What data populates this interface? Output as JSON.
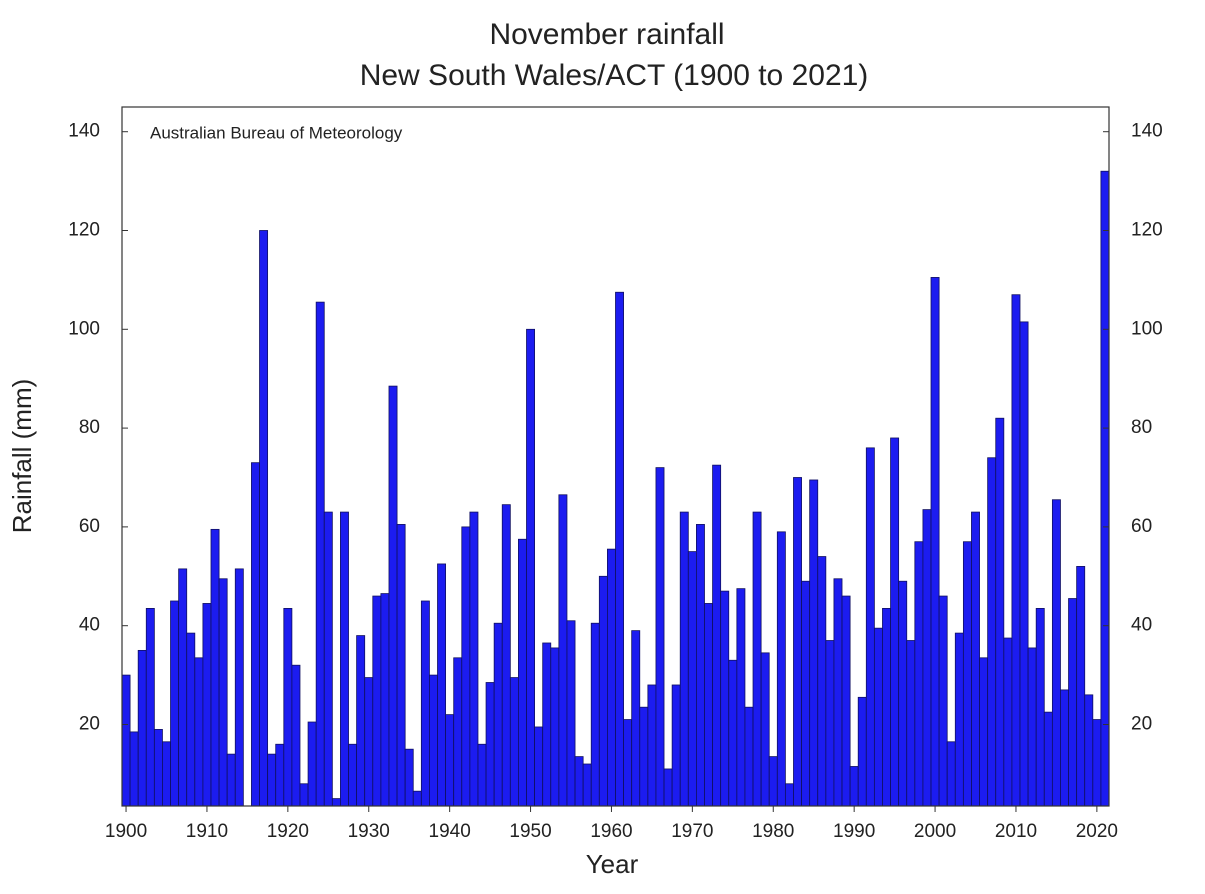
{
  "chart_data": {
    "type": "bar",
    "title": "November rainfall",
    "subtitle": "New South Wales/ACT (1900 to 2021)",
    "annotation": "Australian Bureau of Meteorology",
    "xlabel": "Year",
    "ylabel": "Rainfall (mm)",
    "color": "#1c1cf0",
    "x": [
      1900,
      1901,
      1902,
      1903,
      1904,
      1905,
      1906,
      1907,
      1908,
      1909,
      1910,
      1911,
      1912,
      1913,
      1914,
      1915,
      1916,
      1917,
      1918,
      1919,
      1920,
      1921,
      1922,
      1923,
      1924,
      1925,
      1926,
      1927,
      1928,
      1929,
      1930,
      1931,
      1932,
      1933,
      1934,
      1935,
      1936,
      1937,
      1938,
      1939,
      1940,
      1941,
      1942,
      1943,
      1944,
      1945,
      1946,
      1947,
      1948,
      1949,
      1950,
      1951,
      1952,
      1953,
      1954,
      1955,
      1956,
      1957,
      1958,
      1959,
      1960,
      1961,
      1962,
      1963,
      1964,
      1965,
      1966,
      1967,
      1968,
      1969,
      1970,
      1971,
      1972,
      1973,
      1974,
      1975,
      1976,
      1977,
      1978,
      1979,
      1980,
      1981,
      1982,
      1983,
      1984,
      1985,
      1986,
      1987,
      1988,
      1989,
      1990,
      1991,
      1992,
      1993,
      1994,
      1995,
      1996,
      1997,
      1998,
      1999,
      2000,
      2001,
      2002,
      2003,
      2004,
      2005,
      2006,
      2007,
      2008,
      2009,
      2010,
      2011,
      2012,
      2013,
      2014,
      2015,
      2016,
      2017,
      2018,
      2019,
      2020,
      2021
    ],
    "values": [
      30,
      18.5,
      35,
      43.5,
      19,
      16.5,
      45,
      51.5,
      38.5,
      33.5,
      44.5,
      59.5,
      49.5,
      14,
      51.5,
      3.5,
      73,
      120,
      14,
      16,
      43.5,
      32,
      8,
      20.5,
      105.5,
      63,
      5,
      63,
      16,
      38,
      29.5,
      46,
      46.5,
      88.5,
      60.5,
      15,
      6.5,
      45,
      30,
      52.5,
      22,
      33.5,
      60,
      63,
      16,
      28.5,
      40.5,
      64.5,
      29.5,
      57.5,
      100,
      19.5,
      36.5,
      35.5,
      66.5,
      41,
      13.5,
      12,
      40.5,
      50,
      55.5,
      107.5,
      21,
      39,
      23.5,
      28,
      72,
      11,
      28,
      63,
      55,
      60.5,
      44.5,
      72.5,
      47,
      33,
      47.5,
      23.5,
      63,
      34.5,
      13.5,
      59,
      8,
      70,
      49,
      69.5,
      54,
      37,
      49.5,
      46,
      11.5,
      25.5,
      76,
      39.5,
      43.5,
      78,
      49,
      37,
      57,
      63.5,
      110.5,
      46,
      16.5,
      38.5,
      57,
      63,
      33.5,
      74,
      82,
      37.5,
      107,
      101.5,
      35.5,
      43.5,
      22.5,
      65.5,
      27,
      45.5,
      52,
      26,
      21,
      132
    ],
    "xlim": [
      1899.5,
      2021.5
    ],
    "xticks": [
      1900,
      1910,
      1920,
      1930,
      1940,
      1950,
      1960,
      1970,
      1980,
      1990,
      2000,
      2010,
      2020
    ],
    "ylim": [
      3.5,
      145
    ],
    "yticks": [
      20,
      40,
      60,
      80,
      100,
      120,
      140
    ]
  }
}
